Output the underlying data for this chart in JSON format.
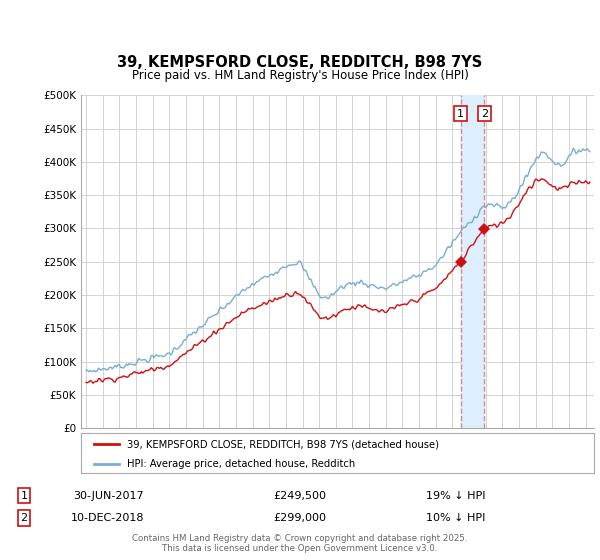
{
  "title": "39, KEMPSFORD CLOSE, REDDITCH, B98 7YS",
  "subtitle": "Price paid vs. HM Land Registry's House Price Index (HPI)",
  "hpi_label": "HPI: Average price, detached house, Redditch",
  "price_label": "39, KEMPSFORD CLOSE, REDDITCH, B98 7YS (detached house)",
  "transactions": [
    {
      "label": "1",
      "date": "30-JUN-2017",
      "price": 249500,
      "note": "19% ↓ HPI",
      "x": 2017.5
    },
    {
      "label": "2",
      "date": "10-DEC-2018",
      "price": 299000,
      "note": "10% ↓ HPI",
      "x": 2018.92
    }
  ],
  "footer": "Contains HM Land Registry data © Crown copyright and database right 2025.\nThis data is licensed under the Open Government Licence v3.0.",
  "hpi_color": "#7aadd4",
  "price_color": "#cc1111",
  "marker_color": "#cc1111",
  "vline_color": "#dd8888",
  "shade_color": "#ddeeff",
  "background_color": "#ffffff",
  "grid_color": "#cccccc",
  "ylim": [
    0,
    500000
  ],
  "xlim": [
    1994.7,
    2025.5
  ],
  "yticks": [
    0,
    50000,
    100000,
    150000,
    200000,
    250000,
    300000,
    350000,
    400000,
    450000,
    500000
  ],
  "xticks": [
    1995,
    1996,
    1997,
    1998,
    1999,
    2000,
    2001,
    2002,
    2003,
    2004,
    2005,
    2006,
    2007,
    2008,
    2009,
    2010,
    2011,
    2012,
    2013,
    2014,
    2015,
    2016,
    2017,
    2018,
    2019,
    2020,
    2021,
    2022,
    2023,
    2024,
    2025
  ]
}
